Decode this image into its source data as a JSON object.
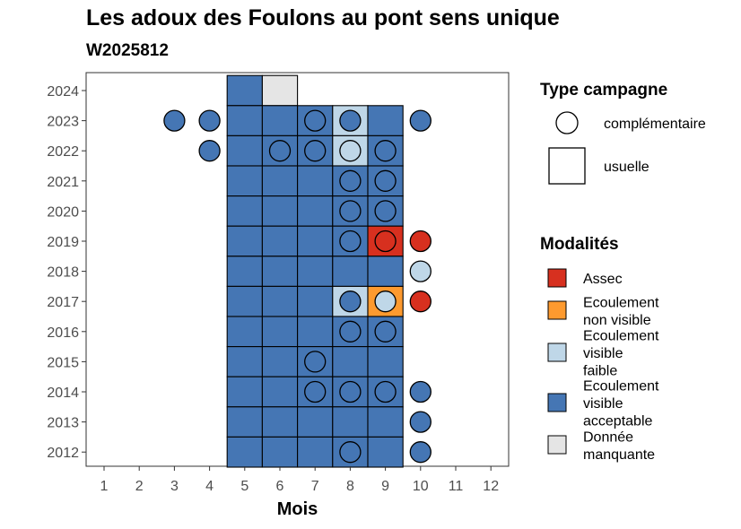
{
  "chart_data": {
    "type": "heatmap",
    "title": "Les adoux des Foulons au pont sens unique",
    "subtitle": "W2025812",
    "xlabel": "Mois",
    "ylabel": "",
    "x_ticks": [
      "1",
      "2",
      "3",
      "4",
      "5",
      "6",
      "7",
      "8",
      "9",
      "10",
      "11",
      "12"
    ],
    "y_ticks": [
      "2012",
      "2013",
      "2014",
      "2015",
      "2016",
      "2017",
      "2018",
      "2019",
      "2020",
      "2021",
      "2022",
      "2023",
      "2024"
    ],
    "colors": {
      "Assec": "#d7301f",
      "Ecoulement non visible": "#fd9a2f",
      "Ecoulement visible faible": "#bfd7e8",
      "Ecoulement visible acceptable": "#4576b4",
      "Donnée manquante": "#e5e5e5"
    },
    "usual_cells": [
      {
        "year": 2024,
        "month": 5,
        "modality": "Ecoulement visible acceptable"
      },
      {
        "year": 2024,
        "month": 6,
        "modality": "Donnée manquante"
      },
      {
        "year": 2023,
        "month": 5,
        "modality": "Ecoulement visible acceptable"
      },
      {
        "year": 2023,
        "month": 6,
        "modality": "Ecoulement visible acceptable"
      },
      {
        "year": 2023,
        "month": 7,
        "modality": "Ecoulement visible acceptable"
      },
      {
        "year": 2023,
        "month": 8,
        "modality": "Ecoulement visible faible"
      },
      {
        "year": 2023,
        "month": 9,
        "modality": "Ecoulement visible acceptable"
      },
      {
        "year": 2022,
        "month": 5,
        "modality": "Ecoulement visible acceptable"
      },
      {
        "year": 2022,
        "month": 6,
        "modality": "Ecoulement visible acceptable"
      },
      {
        "year": 2022,
        "month": 7,
        "modality": "Ecoulement visible acceptable"
      },
      {
        "year": 2022,
        "month": 8,
        "modality": "Ecoulement visible faible"
      },
      {
        "year": 2022,
        "month": 9,
        "modality": "Ecoulement visible acceptable"
      },
      {
        "year": 2021,
        "month": 5,
        "modality": "Ecoulement visible acceptable"
      },
      {
        "year": 2021,
        "month": 6,
        "modality": "Ecoulement visible acceptable"
      },
      {
        "year": 2021,
        "month": 7,
        "modality": "Ecoulement visible acceptable"
      },
      {
        "year": 2021,
        "month": 8,
        "modality": "Ecoulement visible acceptable"
      },
      {
        "year": 2021,
        "month": 9,
        "modality": "Ecoulement visible acceptable"
      },
      {
        "year": 2020,
        "month": 5,
        "modality": "Ecoulement visible acceptable"
      },
      {
        "year": 2020,
        "month": 6,
        "modality": "Ecoulement visible acceptable"
      },
      {
        "year": 2020,
        "month": 7,
        "modality": "Ecoulement visible acceptable"
      },
      {
        "year": 2020,
        "month": 8,
        "modality": "Ecoulement visible acceptable"
      },
      {
        "year": 2020,
        "month": 9,
        "modality": "Ecoulement visible acceptable"
      },
      {
        "year": 2019,
        "month": 5,
        "modality": "Ecoulement visible acceptable"
      },
      {
        "year": 2019,
        "month": 6,
        "modality": "Ecoulement visible acceptable"
      },
      {
        "year": 2019,
        "month": 7,
        "modality": "Ecoulement visible acceptable"
      },
      {
        "year": 2019,
        "month": 8,
        "modality": "Ecoulement visible acceptable"
      },
      {
        "year": 2019,
        "month": 9,
        "modality": "Assec"
      },
      {
        "year": 2018,
        "month": 5,
        "modality": "Ecoulement visible acceptable"
      },
      {
        "year": 2018,
        "month": 6,
        "modality": "Ecoulement visible acceptable"
      },
      {
        "year": 2018,
        "month": 7,
        "modality": "Ecoulement visible acceptable"
      },
      {
        "year": 2018,
        "month": 8,
        "modality": "Ecoulement visible acceptable"
      },
      {
        "year": 2018,
        "month": 9,
        "modality": "Ecoulement visible acceptable"
      },
      {
        "year": 2017,
        "month": 5,
        "modality": "Ecoulement visible acceptable"
      },
      {
        "year": 2017,
        "month": 6,
        "modality": "Ecoulement visible acceptable"
      },
      {
        "year": 2017,
        "month": 7,
        "modality": "Ecoulement visible acceptable"
      },
      {
        "year": 2017,
        "month": 8,
        "modality": "Ecoulement visible faible"
      },
      {
        "year": 2017,
        "month": 9,
        "modality": "Ecoulement non visible"
      },
      {
        "year": 2016,
        "month": 5,
        "modality": "Ecoulement visible acceptable"
      },
      {
        "year": 2016,
        "month": 6,
        "modality": "Ecoulement visible acceptable"
      },
      {
        "year": 2016,
        "month": 7,
        "modality": "Ecoulement visible acceptable"
      },
      {
        "year": 2016,
        "month": 8,
        "modality": "Ecoulement visible acceptable"
      },
      {
        "year": 2016,
        "month": 9,
        "modality": "Ecoulement visible acceptable"
      },
      {
        "year": 2015,
        "month": 5,
        "modality": "Ecoulement visible acceptable"
      },
      {
        "year": 2015,
        "month": 6,
        "modality": "Ecoulement visible acceptable"
      },
      {
        "year": 2015,
        "month": 7,
        "modality": "Ecoulement visible acceptable"
      },
      {
        "year": 2015,
        "month": 8,
        "modality": "Ecoulement visible acceptable"
      },
      {
        "year": 2015,
        "month": 9,
        "modality": "Ecoulement visible acceptable"
      },
      {
        "year": 2014,
        "month": 5,
        "modality": "Ecoulement visible acceptable"
      },
      {
        "year": 2014,
        "month": 6,
        "modality": "Ecoulement visible acceptable"
      },
      {
        "year": 2014,
        "month": 7,
        "modality": "Ecoulement visible acceptable"
      },
      {
        "year": 2014,
        "month": 8,
        "modality": "Ecoulement visible acceptable"
      },
      {
        "year": 2014,
        "month": 9,
        "modality": "Ecoulement visible acceptable"
      },
      {
        "year": 2013,
        "month": 5,
        "modality": "Ecoulement visible acceptable"
      },
      {
        "year": 2013,
        "month": 6,
        "modality": "Ecoulement visible acceptable"
      },
      {
        "year": 2013,
        "month": 7,
        "modality": "Ecoulement visible acceptable"
      },
      {
        "year": 2013,
        "month": 8,
        "modality": "Ecoulement visible acceptable"
      },
      {
        "year": 2013,
        "month": 9,
        "modality": "Ecoulement visible acceptable"
      },
      {
        "year": 2012,
        "month": 5,
        "modality": "Ecoulement visible acceptable"
      },
      {
        "year": 2012,
        "month": 6,
        "modality": "Ecoulement visible acceptable"
      },
      {
        "year": 2012,
        "month": 7,
        "modality": "Ecoulement visible acceptable"
      },
      {
        "year": 2012,
        "month": 8,
        "modality": "Ecoulement visible acceptable"
      },
      {
        "year": 2012,
        "month": 9,
        "modality": "Ecoulement visible acceptable"
      }
    ],
    "complementary_points": [
      {
        "year": 2023,
        "month": 3,
        "modality": "Ecoulement visible acceptable"
      },
      {
        "year": 2023,
        "month": 4,
        "modality": "Ecoulement visible acceptable"
      },
      {
        "year": 2023,
        "month": 7,
        "modality": "Ecoulement visible acceptable"
      },
      {
        "year": 2023,
        "month": 8,
        "modality": "Ecoulement visible acceptable"
      },
      {
        "year": 2023,
        "month": 10,
        "modality": "Ecoulement visible acceptable"
      },
      {
        "year": 2022,
        "month": 4,
        "modality": "Ecoulement visible acceptable"
      },
      {
        "year": 2022,
        "month": 6,
        "modality": "Ecoulement visible acceptable"
      },
      {
        "year": 2022,
        "month": 7,
        "modality": "Ecoulement visible acceptable"
      },
      {
        "year": 2022,
        "month": 8,
        "modality": "Ecoulement visible faible"
      },
      {
        "year": 2022,
        "month": 9,
        "modality": "Ecoulement visible acceptable"
      },
      {
        "year": 2021,
        "month": 8,
        "modality": "Ecoulement visible acceptable"
      },
      {
        "year": 2021,
        "month": 9,
        "modality": "Ecoulement visible acceptable"
      },
      {
        "year": 2020,
        "month": 8,
        "modality": "Ecoulement visible acceptable"
      },
      {
        "year": 2020,
        "month": 9,
        "modality": "Ecoulement visible acceptable"
      },
      {
        "year": 2019,
        "month": 8,
        "modality": "Ecoulement visible acceptable"
      },
      {
        "year": 2019,
        "month": 9,
        "modality": "Assec"
      },
      {
        "year": 2019,
        "month": 10,
        "modality": "Assec"
      },
      {
        "year": 2018,
        "month": 10,
        "modality": "Ecoulement visible faible"
      },
      {
        "year": 2017,
        "month": 8,
        "modality": "Ecoulement visible acceptable"
      },
      {
        "year": 2017,
        "month": 9,
        "modality": "Ecoulement visible faible"
      },
      {
        "year": 2017,
        "month": 10,
        "modality": "Assec"
      },
      {
        "year": 2016,
        "month": 8,
        "modality": "Ecoulement visible acceptable"
      },
      {
        "year": 2016,
        "month": 9,
        "modality": "Ecoulement visible acceptable"
      },
      {
        "year": 2015,
        "month": 7,
        "modality": "Ecoulement visible acceptable"
      },
      {
        "year": 2014,
        "month": 7,
        "modality": "Ecoulement visible acceptable"
      },
      {
        "year": 2014,
        "month": 8,
        "modality": "Ecoulement visible acceptable"
      },
      {
        "year": 2014,
        "month": 9,
        "modality": "Ecoulement visible acceptable"
      },
      {
        "year": 2014,
        "month": 10,
        "modality": "Ecoulement visible acceptable"
      },
      {
        "year": 2013,
        "month": 10,
        "modality": "Ecoulement visible acceptable"
      },
      {
        "year": 2012,
        "month": 8,
        "modality": "Ecoulement visible acceptable"
      },
      {
        "year": 2012,
        "month": 10,
        "modality": "Ecoulement visible acceptable"
      }
    ],
    "legend": {
      "type_title": "Type campagne",
      "type_items": [
        {
          "label": "complémentaire",
          "shape": "circle"
        },
        {
          "label": "usuelle",
          "shape": "square"
        }
      ],
      "modality_title": "Modalités",
      "modality_items": [
        {
          "key": "Assec",
          "lines": [
            "Assec"
          ]
        },
        {
          "key": "Ecoulement non visible",
          "lines": [
            "Ecoulement",
            "non visible"
          ]
        },
        {
          "key": "Ecoulement visible faible",
          "lines": [
            "Ecoulement",
            "visible",
            "faible"
          ]
        },
        {
          "key": "Ecoulement visible acceptable",
          "lines": [
            "Ecoulement",
            "visible",
            "acceptable"
          ]
        },
        {
          "key": "Donnée manquante",
          "lines": [
            "Donnée",
            "manquante"
          ]
        }
      ]
    }
  }
}
